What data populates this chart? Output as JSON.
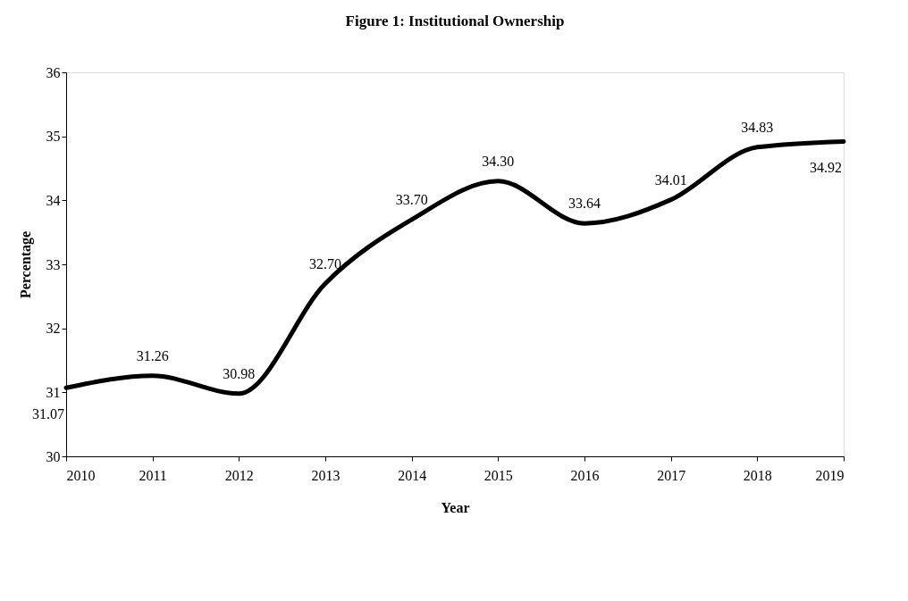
{
  "chart_data": {
    "type": "line",
    "title": "Figure 1: Institutional Ownership",
    "xlabel": "Year",
    "ylabel": "Percentage",
    "x": [
      2010,
      2011,
      2012,
      2013,
      2014,
      2015,
      2016,
      2017,
      2018,
      2019
    ],
    "series": [
      {
        "color": "#000000",
        "values": [
          31.07,
          31.26,
          30.98,
          32.7,
          33.7,
          34.3,
          33.64,
          34.01,
          34.83,
          34.92
        ],
        "value_labels": [
          "31.07",
          "31.26",
          "30.98",
          "32.70",
          "33.70",
          "34.30",
          "33.64",
          "34.01",
          "34.83",
          "34.92"
        ]
      }
    ],
    "xlim": [
      2010,
      2019
    ],
    "xticks": [
      2010,
      2011,
      2012,
      2013,
      2014,
      2015,
      2016,
      2017,
      2018,
      2019
    ],
    "ylim": [
      30,
      36
    ],
    "yticks": [
      30,
      31,
      32,
      33,
      34,
      35,
      36
    ],
    "grid": false,
    "legend": false,
    "marker": "none",
    "line_style": "solid"
  }
}
